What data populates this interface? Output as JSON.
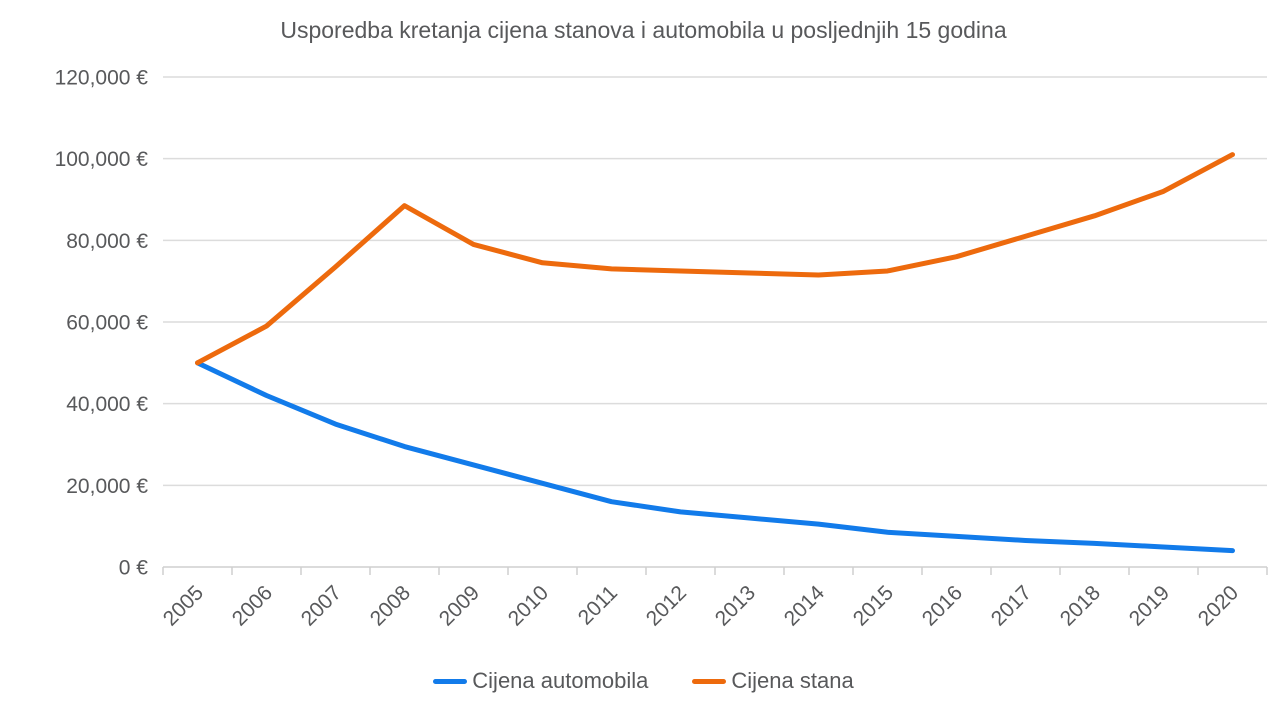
{
  "chart_data": {
    "type": "line",
    "title": "Usporedba kretanja cijena stanova i automobila u posljednjih 15 godina",
    "categories": [
      "2005",
      "2006",
      "2007",
      "2008",
      "2009",
      "2010",
      "2011",
      "2012",
      "2013",
      "2014",
      "2015",
      "2016",
      "2017",
      "2018",
      "2019",
      "2020"
    ],
    "series": [
      {
        "name": "Cijena automobila",
        "color": "#127bea",
        "values": [
          50000,
          42000,
          35000,
          29500,
          25000,
          20500,
          16000,
          13500,
          12000,
          10500,
          8500,
          7500,
          6500,
          5800,
          4900,
          4000
        ]
      },
      {
        "name": "Cijena stana",
        "color": "#ed6a0d",
        "values": [
          50000,
          59000,
          73500,
          88500,
          79000,
          74500,
          73000,
          72500,
          72000,
          71500,
          72500,
          76000,
          81000,
          86000,
          92000,
          101000
        ]
      }
    ],
    "xlabel": "",
    "ylabel": "",
    "ylim": [
      0,
      120000
    ],
    "y_tick_step": 20000,
    "y_tick_labels": [
      "0 €",
      "20,000 €",
      "40,000 €",
      "60,000 €",
      "80,000 €",
      "100,000 €",
      "120,000 €"
    ],
    "grid": "horizontal",
    "x_labels_rotated_degrees": 45,
    "legend_position": "bottom-center",
    "colors": {
      "text": "#58595b",
      "gridline": "#dcdcdc",
      "axis": "#cfcfcf",
      "background": "#ffffff"
    }
  }
}
